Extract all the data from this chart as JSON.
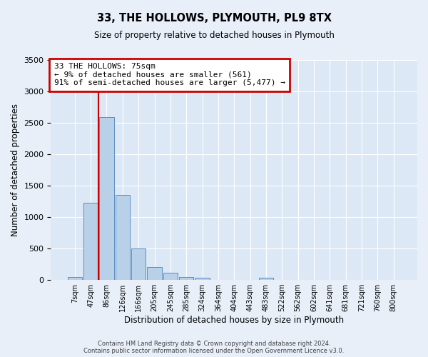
{
  "title": "33, THE HOLLOWS, PLYMOUTH, PL9 8TX",
  "subtitle": "Size of property relative to detached houses in Plymouth",
  "xlabel": "Distribution of detached houses by size in Plymouth",
  "ylabel": "Number of detached properties",
  "bar_labels": [
    "7sqm",
    "47sqm",
    "86sqm",
    "126sqm",
    "166sqm",
    "205sqm",
    "245sqm",
    "285sqm",
    "324sqm",
    "364sqm",
    "404sqm",
    "443sqm",
    "483sqm",
    "522sqm",
    "562sqm",
    "602sqm",
    "641sqm",
    "681sqm",
    "721sqm",
    "760sqm",
    "800sqm"
  ],
  "bar_values": [
    50,
    1230,
    2590,
    1350,
    500,
    200,
    110,
    50,
    40,
    0,
    0,
    0,
    30,
    0,
    0,
    0,
    0,
    0,
    0,
    0,
    0
  ],
  "bar_color": "#b8d0e8",
  "bar_edge_color": "#5a8fc0",
  "ylim": [
    0,
    3500
  ],
  "yticks": [
    0,
    500,
    1000,
    1500,
    2000,
    2500,
    3000,
    3500
  ],
  "vline_color": "#cc0000",
  "vline_x": 1.5,
  "annotation_title": "33 THE HOLLOWS: 75sqm",
  "annotation_line1": "← 9% of detached houses are smaller (561)",
  "annotation_line2": "91% of semi-detached houses are larger (5,477) →",
  "annotation_box_color": "#cc0000",
  "footnote1": "Contains HM Land Registry data © Crown copyright and database right 2024.",
  "footnote2": "Contains public sector information licensed under the Open Government Licence v3.0.",
  "bg_color": "#e8eff8",
  "plot_bg_color": "#dce8f5"
}
